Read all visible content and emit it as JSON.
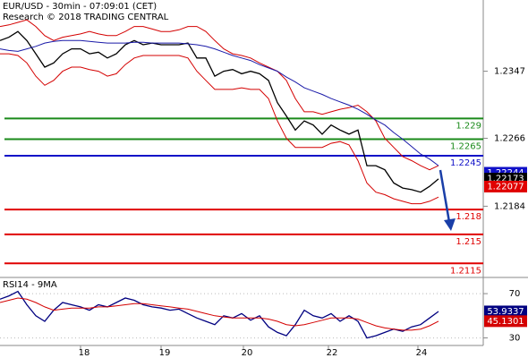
{
  "chart_data": [
    {
      "type": "line",
      "title": "EUR/USD - 30min - 07:09:01 (CET)",
      "subtitle": "Research © 2018 TRADING CENTRAL",
      "x": [
        0,
        1,
        2,
        3,
        4,
        5,
        6,
        7,
        8,
        9,
        10,
        11,
        12,
        13,
        14,
        15,
        16,
        17,
        18,
        19,
        20,
        21,
        22,
        23,
        24,
        25,
        26,
        27,
        28,
        29,
        30,
        31,
        32,
        33,
        34,
        35,
        36,
        37,
        38,
        39,
        40,
        41,
        42,
        43,
        44,
        45,
        46,
        47,
        48,
        49
      ],
      "xlim": [
        0,
        54
      ],
      "xticks": [
        {
          "value": 9,
          "label": "18"
        },
        {
          "value": 18,
          "label": "19"
        },
        {
          "value": 27.2,
          "label": "20"
        },
        {
          "value": 36.7,
          "label": "22"
        },
        {
          "value": 46.7,
          "label": "24"
        }
      ],
      "ylim": [
        1.2098,
        1.2433
      ],
      "yticks": [
        1.2347,
        1.2266,
        1.2184
      ],
      "series": [
        {
          "color": "#000000",
          "values": [
            1.2384,
            1.2388,
            1.2395,
            1.2384,
            1.2368,
            1.2352,
            1.2357,
            1.2368,
            1.2374,
            1.2374,
            1.2368,
            1.237,
            1.2363,
            1.2368,
            1.2379,
            1.2384,
            1.2379,
            1.2381,
            1.2379,
            1.2379,
            1.2379,
            1.2381,
            1.2363,
            1.2363,
            1.2341,
            1.2347,
            1.2349,
            1.2344,
            1.2347,
            1.2344,
            1.2336,
            1.2309,
            1.2293,
            1.2276,
            1.2287,
            1.2282,
            1.2271,
            1.2282,
            1.2276,
            1.2271,
            1.2276,
            1.2233,
            1.2233,
            1.2228,
            1.2212,
            1.2206,
            1.2204,
            1.2201,
            1.2208,
            1.2217
          ]
        },
        {
          "color": "#d40000",
          "values": [
            1.2401,
            1.2403,
            1.2406,
            1.2409,
            1.2401,
            1.239,
            1.2384,
            1.2388,
            1.239,
            1.2392,
            1.2395,
            1.2392,
            1.239,
            1.239,
            1.2395,
            1.2401,
            1.2401,
            1.2398,
            1.2395,
            1.2395,
            1.2397,
            1.2401,
            1.2401,
            1.2395,
            1.2384,
            1.2374,
            1.2368,
            1.2366,
            1.2363,
            1.2357,
            1.2352,
            1.2347,
            1.2336,
            1.2314,
            1.2298,
            1.2298,
            1.2295,
            1.2298,
            1.2301,
            1.2303,
            1.2306,
            1.2298,
            1.2287,
            1.2266,
            1.2255,
            1.2244,
            1.2239,
            1.2233,
            1.2228,
            1.2233
          ]
        },
        {
          "color": "#d40000",
          "values": [
            1.2368,
            1.2368,
            1.2366,
            1.2357,
            1.2341,
            1.233,
            1.2336,
            1.2347,
            1.2352,
            1.2352,
            1.2349,
            1.2347,
            1.2341,
            1.2344,
            1.2355,
            1.2363,
            1.2366,
            1.2366,
            1.2366,
            1.2366,
            1.2366,
            1.2363,
            1.2347,
            1.2336,
            1.2325,
            1.2325,
            1.2325,
            1.2327,
            1.2325,
            1.2325,
            1.2314,
            1.2287,
            1.2266,
            1.2255,
            1.2255,
            1.2255,
            1.2255,
            1.226,
            1.2262,
            1.2258,
            1.2239,
            1.2212,
            1.2201,
            1.2198,
            1.2193,
            1.219,
            1.2187,
            1.2187,
            1.219,
            1.2195
          ]
        },
        {
          "color": "#1a1aa8",
          "values": [
            1.2374,
            1.2372,
            1.2371,
            1.2374,
            1.2377,
            1.2381,
            1.2383,
            1.2384,
            1.2384,
            1.2384,
            1.2383,
            1.2382,
            1.2381,
            1.2381,
            1.2381,
            1.2382,
            1.2382,
            1.2381,
            1.2381,
            1.2381,
            1.2381,
            1.238,
            1.2379,
            1.2377,
            1.2374,
            1.237,
            1.2366,
            1.2363,
            1.236,
            1.2355,
            1.2351,
            1.2347,
            1.234,
            1.2334,
            1.2327,
            1.2323,
            1.2319,
            1.2314,
            1.231,
            1.2306,
            1.2301,
            1.2295,
            1.2288,
            1.2282,
            1.2273,
            1.2265,
            1.2256,
            1.2247,
            1.2241,
            1.2233
          ]
        }
      ],
      "levels": [
        {
          "value": 1.229,
          "color": "#1a8a1a"
        },
        {
          "value": 1.2265,
          "color": "#1a8a1a"
        },
        {
          "value": 1.2245,
          "color": "#1010c8"
        },
        {
          "value": 1.218,
          "color": "#e00000"
        },
        {
          "value": 1.215,
          "color": "#e00000"
        },
        {
          "value": 1.2115,
          "color": "#e00000"
        }
      ],
      "price_tags": [
        {
          "value": 1.22244,
          "color": "#1010c8"
        },
        {
          "value": 1.22173,
          "color": "#000000"
        },
        {
          "value": 1.22077,
          "color": "#e00000"
        }
      ]
    },
    {
      "type": "line",
      "title": "RSI14 - 9MA",
      "ylim": [
        24,
        83
      ],
      "yticks": [
        30,
        70
      ],
      "series": [
        {
          "color": "#000080",
          "values": [
            65,
            68,
            72,
            60,
            50,
            45,
            55,
            62,
            60,
            58,
            55,
            60,
            58,
            62,
            66,
            64,
            60,
            58,
            57,
            55,
            56,
            52,
            48,
            45,
            42,
            50,
            48,
            52,
            46,
            50,
            40,
            35,
            32,
            42,
            55,
            50,
            48,
            52,
            45,
            50,
            45,
            30,
            32,
            35,
            38,
            36,
            40,
            42,
            48,
            53.9337
          ]
        },
        {
          "color": "#d40000",
          "values": [
            62,
            64,
            66,
            65,
            62,
            58,
            55,
            56,
            57,
            57,
            57,
            58,
            58,
            59,
            60,
            61,
            61,
            60,
            59,
            58,
            57,
            56,
            54,
            52,
            50,
            49,
            48,
            48,
            48,
            48,
            47,
            45,
            42,
            41,
            42,
            44,
            46,
            48,
            48,
            48,
            47,
            44,
            41,
            39,
            38,
            37,
            37,
            38,
            41,
            45.1301
          ]
        }
      ],
      "price_tags": [
        {
          "value": 53.9337,
          "color": "#000080"
        },
        {
          "value": 45.1301,
          "color": "#d40000"
        }
      ]
    }
  ]
}
